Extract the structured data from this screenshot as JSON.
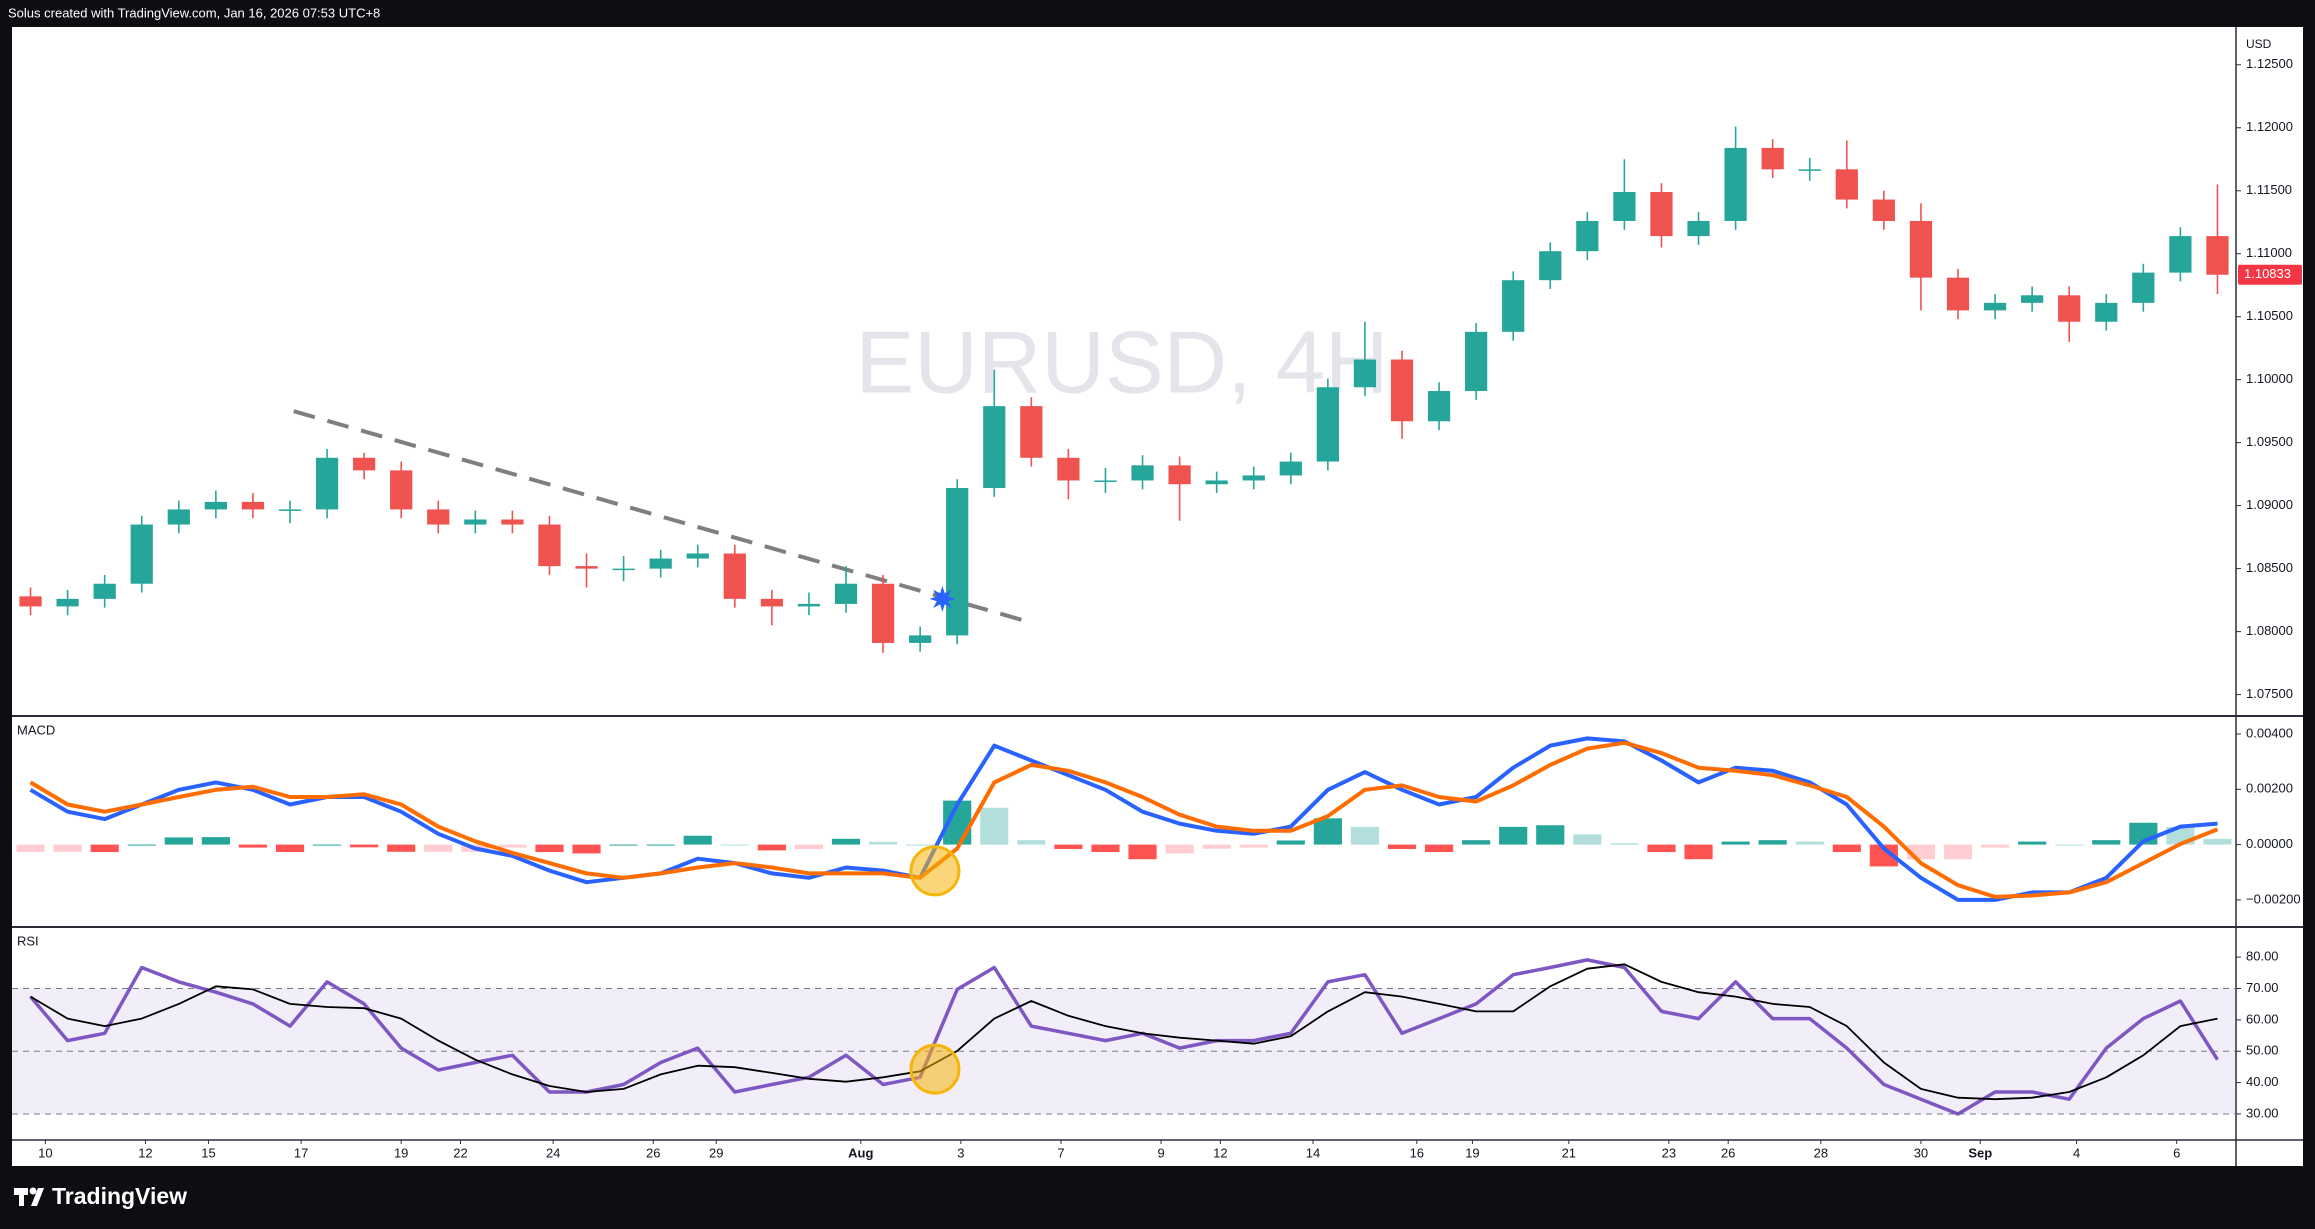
{
  "header": {
    "text": "Solus created with TradingView.com, Jan 16, 2026 07:53 UTC+8"
  },
  "footer": {
    "brand": "TradingView"
  },
  "chart_data": [
    {
      "type": "candlestick",
      "watermark": "EURUSD, 4H",
      "currency": "USD",
      "up_color": "#26a69a",
      "down_color": "#ef5350",
      "grid": false,
      "xlim": [
        -0.5,
        59.5
      ],
      "ylim": [
        1.0733,
        1.128
      ],
      "yticks": [
        {
          "value": 1.075,
          "label": "1.07500"
        },
        {
          "value": 1.08,
          "label": "1.08000"
        },
        {
          "value": 1.085,
          "label": "1.08500"
        },
        {
          "value": 1.09,
          "label": "1.09000"
        },
        {
          "value": 1.095,
          "label": "1.09500"
        },
        {
          "value": 1.1,
          "label": "1.10000"
        },
        {
          "value": 1.105,
          "label": "1.10500"
        },
        {
          "value": 1.11,
          "label": "1.11000"
        },
        {
          "value": 1.115,
          "label": "1.11500"
        },
        {
          "value": 1.12,
          "label": "1.12000"
        },
        {
          "value": 1.125,
          "label": "1.12500"
        }
      ],
      "xticks": [
        {
          "value": 0.4,
          "label": "10"
        },
        {
          "value": 3.1,
          "label": "12"
        },
        {
          "value": 4.8,
          "label": "15"
        },
        {
          "value": 7.3,
          "label": "17"
        },
        {
          "value": 10,
          "label": "19"
        },
        {
          "value": 11.6,
          "label": "22"
        },
        {
          "value": 14.1,
          "label": "24"
        },
        {
          "value": 16.8,
          "label": "26"
        },
        {
          "value": 18.5,
          "label": "29"
        },
        {
          "value": 22.4,
          "label": "Aug"
        },
        {
          "value": 25.1,
          "label": "3"
        },
        {
          "value": 27.8,
          "label": "7"
        },
        {
          "value": 30.5,
          "label": "9"
        },
        {
          "value": 32.1,
          "label": "12"
        },
        {
          "value": 34.6,
          "label": "14"
        },
        {
          "value": 37.4,
          "label": "16"
        },
        {
          "value": 38.9,
          "label": "19"
        },
        {
          "value": 41.5,
          "label": "21"
        },
        {
          "value": 44.2,
          "label": "23"
        },
        {
          "value": 45.8,
          "label": "26"
        },
        {
          "value": 48.3,
          "label": "28"
        },
        {
          "value": 51,
          "label": "30"
        },
        {
          "value": 52.6,
          "label": "Sep"
        },
        {
          "value": 55.2,
          "label": "4"
        },
        {
          "value": 57.9,
          "label": "6"
        }
      ],
      "open": [
        1.0828,
        1.082,
        1.0826,
        1.0838,
        1.0885,
        1.0897,
        1.0903,
        1.0897,
        1.0897,
        1.0938,
        1.0928,
        1.0897,
        1.0885,
        1.0889,
        1.0885,
        1.0852,
        1.085,
        1.085,
        1.0858,
        1.0862,
        1.0826,
        1.082,
        1.0822,
        1.0838,
        1.0791,
        1.0797,
        1.0914,
        1.0979,
        1.0938,
        1.092,
        1.092,
        1.0932,
        1.0917,
        1.092,
        1.0924,
        1.0935,
        1.0994,
        1.1016,
        1.0967,
        1.0991,
        1.1038,
        1.1079,
        1.1102,
        1.1126,
        1.1149,
        1.1114,
        1.1126,
        1.1184,
        1.1167,
        1.1167,
        1.1143,
        1.1126,
        1.1081,
        1.1055,
        1.1061,
        1.1067,
        1.1046,
        1.1061,
        1.1085,
        1.1114
      ],
      "high": [
        1.0835,
        1.0833,
        1.0845,
        1.0892,
        1.0904,
        1.0912,
        1.091,
        1.0904,
        1.0945,
        1.0942,
        1.0935,
        1.0904,
        1.0896,
        1.0896,
        1.0892,
        1.0862,
        1.086,
        1.0865,
        1.0869,
        1.0869,
        1.0833,
        1.0831,
        1.0852,
        1.0845,
        1.0804,
        1.0921,
        1.1008,
        1.0986,
        1.0945,
        1.093,
        1.094,
        1.0939,
        1.0927,
        1.0931,
        1.0942,
        1.1001,
        1.1046,
        1.1023,
        1.0998,
        1.1045,
        1.1086,
        1.1109,
        1.1133,
        1.1175,
        1.1156,
        1.1133,
        1.1201,
        1.1191,
        1.1176,
        1.119,
        1.115,
        1.114,
        1.1088,
        1.1068,
        1.1074,
        1.1074,
        1.1068,
        1.1092,
        1.1121,
        1.1155
      ],
      "low": [
        1.0813,
        1.0813,
        1.0819,
        1.0831,
        1.0878,
        1.089,
        1.089,
        1.0886,
        1.089,
        1.0921,
        1.089,
        1.0878,
        1.0878,
        1.0878,
        1.0845,
        1.0835,
        1.084,
        1.0843,
        1.0851,
        1.0819,
        1.0805,
        1.0813,
        1.0815,
        1.0783,
        1.0784,
        1.079,
        1.0907,
        1.0931,
        1.0905,
        1.091,
        1.0913,
        1.0888,
        1.091,
        1.0913,
        1.0917,
        1.0928,
        1.0987,
        1.0953,
        1.096,
        1.0984,
        1.1031,
        1.1072,
        1.1095,
        1.1119,
        1.1105,
        1.1107,
        1.1119,
        1.116,
        1.1158,
        1.1136,
        1.1119,
        1.1055,
        1.1048,
        1.1048,
        1.1054,
        1.103,
        1.1039,
        1.1054,
        1.1078,
        1.1068
      ],
      "close": [
        1.082,
        1.0826,
        1.0838,
        1.0885,
        1.0897,
        1.0903,
        1.0897,
        1.0897,
        1.0938,
        1.0928,
        1.0897,
        1.0885,
        1.0889,
        1.0885,
        1.0852,
        1.085,
        1.085,
        1.0858,
        1.0862,
        1.0826,
        1.082,
        1.0822,
        1.0838,
        1.0791,
        1.0797,
        1.0914,
        1.0979,
        1.0938,
        1.092,
        1.092,
        1.0932,
        1.0917,
        1.092,
        1.0924,
        1.0935,
        1.0994,
        1.1016,
        1.0967,
        1.0991,
        1.1038,
        1.1079,
        1.1102,
        1.1126,
        1.1149,
        1.1114,
        1.1126,
        1.1184,
        1.1167,
        1.1167,
        1.1143,
        1.1126,
        1.1081,
        1.1055,
        1.1061,
        1.1067,
        1.1046,
        1.1061,
        1.1085,
        1.1114,
        1.10833
      ],
      "last_price": 1.10833,
      "last_price_color": "#f23645",
      "trendline": {
        "x": [
          7.1,
          26.9
        ],
        "y": [
          1.0975,
          1.0808
        ],
        "color": "#7f7f7f"
      },
      "marker": {
        "x": 24.6,
        "y": 1.0826,
        "shape": "star",
        "color": "#2962ff"
      }
    },
    {
      "type": "macd",
      "title": "MACD",
      "grid": false,
      "xlim": [
        -0.5,
        59.5
      ],
      "ylim": [
        -0.00298,
        0.00465
      ],
      "yticks": [
        {
          "value": -0.002,
          "label": "−0.00200"
        },
        {
          "value": 0,
          "label": "0.00000"
        },
        {
          "value": 0.002,
          "label": "0.00200"
        },
        {
          "value": 0.004,
          "label": "0.00400"
        }
      ],
      "series": [
        {
          "style": "histogram",
          "colors": [
            "#26a69a",
            "#b2dfdb",
            "#ff5252",
            "#ffcdd2"
          ],
          "values": [
            -0.00027,
            -0.00026,
            -0.00027,
            0,
            0.00026,
            0.00027,
            -0.00011,
            -0.00027,
            0,
            -0.0001,
            -0.00026,
            -0.00026,
            -0.00026,
            -0.00011,
            -0.00027,
            -0.00032,
            0,
            0,
            0.00032,
            0,
            -0.00021,
            -0.00016,
            0.00021,
            0.0001,
            0,
            0.00159,
            0.00133,
            0.00016,
            -0.00016,
            -0.00027,
            -0.00053,
            -0.00032,
            -0.00015,
            -0.00011,
            0.00015,
            0.00095,
            0.00064,
            -0.00016,
            -0.00027,
            0.00016,
            0.00064,
            0.0007,
            0.00037,
            5e-05,
            -0.00027,
            -0.00053,
            0.00011,
            0.00016,
            0.00011,
            -0.00027,
            -0.00079,
            -0.00053,
            -0.00053,
            -0.00011,
            0.00011,
            0,
            0.00016,
            0.00079,
            0.00063,
            0.00021
          ]
        },
        {
          "style": "line",
          "color": "#2962ff",
          "values": [
            0.00198,
            0.00119,
            0.00092,
            0.00145,
            0.00198,
            0.00225,
            0.00198,
            0.00145,
            0.00172,
            0.00172,
            0.00119,
            0.00039,
            -0.00014,
            -0.00041,
            -0.00094,
            -0.00136,
            -0.0012,
            -0.00104,
            -0.00051,
            -0.00067,
            -0.00104,
            -0.0012,
            -0.00083,
            -0.00094,
            -0.0012,
            0.00145,
            0.00358,
            0.00304,
            0.00251,
            0.00198,
            0.00119,
            0.00076,
            0.0005,
            0.00039,
            0.00065,
            0.00198,
            0.00262,
            0.00198,
            0.00145,
            0.00172,
            0.00278,
            0.00358,
            0.00384,
            0.00373,
            0.00304,
            0.00225,
            0.00278,
            0.00267,
            0.00225,
            0.00145,
            -0.00014,
            -0.0012,
            -0.002,
            -0.002,
            -0.00173,
            -0.00173,
            -0.0012,
            0.00012,
            0.00065,
            0.00076
          ]
        },
        {
          "style": "line",
          "color": "#ff6d00",
          "values": [
            0.00225,
            0.00145,
            0.00119,
            0.00145,
            0.00172,
            0.00198,
            0.00209,
            0.00172,
            0.00172,
            0.00182,
            0.00145,
            0.00065,
            0.00012,
            -0.0003,
            -0.00067,
            -0.00104,
            -0.0012,
            -0.00104,
            -0.00083,
            -0.00067,
            -0.00083,
            -0.00104,
            -0.00104,
            -0.00104,
            -0.0012,
            -0.00014,
            0.00225,
            0.00288,
            0.00267,
            0.00225,
            0.00172,
            0.00108,
            0.00065,
            0.0005,
            0.0005,
            0.00103,
            0.00198,
            0.00214,
            0.00172,
            0.00156,
            0.00214,
            0.00288,
            0.00347,
            0.00368,
            0.00331,
            0.00278,
            0.00267,
            0.00251,
            0.00214,
            0.00172,
            0.00065,
            -0.00067,
            -0.00147,
            -0.00189,
            -0.00184,
            -0.00173,
            -0.00136,
            -0.00067,
            2e-05,
            0.00055
          ]
        }
      ],
      "marker": {
        "x": 24.4,
        "y": -0.00095,
        "shape": "circle",
        "color": "#f5b50a"
      }
    },
    {
      "type": "rsi",
      "title": "RSI",
      "grid": false,
      "xlim": [
        -0.5,
        59.5
      ],
      "ylim": [
        21.7,
        89.6
      ],
      "yticks": [
        {
          "value": 30,
          "label": "30.00"
        },
        {
          "value": 40,
          "label": "40.00"
        },
        {
          "value": 50,
          "label": "50.00"
        },
        {
          "value": 60,
          "label": "60.00"
        },
        {
          "value": 70,
          "label": "70.00"
        },
        {
          "value": 80,
          "label": "80.00"
        }
      ],
      "band": [
        30,
        70
      ],
      "band_color": "#7e57c2",
      "levels": [
        30,
        50,
        70
      ],
      "series": [
        {
          "style": "line",
          "color": "#7e57c2",
          "values": [
            67.4,
            53.4,
            55.7,
            76.7,
            72.1,
            68.8,
            65.1,
            58,
            72.1,
            65.1,
            51,
            44,
            46.4,
            48.7,
            37,
            37,
            39.4,
            46.4,
            51,
            37,
            39.4,
            41.7,
            48.7,
            39.4,
            41.7,
            69.7,
            76.7,
            58,
            55.7,
            53.4,
            55.7,
            51,
            53.4,
            53.4,
            55.7,
            72.1,
            74.4,
            55.7,
            60.4,
            65.1,
            74.4,
            76.7,
            79.1,
            76.7,
            62.7,
            60.4,
            72.1,
            60.4,
            60.4,
            51,
            39.4,
            34.7,
            30,
            37,
            37,
            34.7,
            51,
            60.4,
            66,
            47.3
          ]
        },
        {
          "style": "line",
          "color": "#000000",
          "values": [
            67.4,
            60.4,
            58,
            60.4,
            65.1,
            70.7,
            69.7,
            65.1,
            64.1,
            63.7,
            60.4,
            53.4,
            47.3,
            42.6,
            38.9,
            37,
            38,
            42.6,
            45.4,
            44.9,
            43.1,
            41.2,
            40.3,
            41.7,
            43.6,
            50.1,
            60.4,
            66,
            61.3,
            58,
            55.7,
            54.3,
            53.4,
            52.4,
            54.8,
            62.7,
            68.8,
            67.4,
            65.1,
            62.7,
            62.7,
            70.7,
            76.3,
            77.7,
            72.1,
            68.8,
            67.4,
            65.1,
            64.1,
            58,
            46.4,
            38,
            35.2,
            34.7,
            35.2,
            37,
            41.7,
            48.7,
            58,
            60.4
          ]
        }
      ],
      "marker": {
        "x": 24.4,
        "y": 44.3,
        "shape": "circle",
        "color": "#f5b50a"
      }
    }
  ]
}
